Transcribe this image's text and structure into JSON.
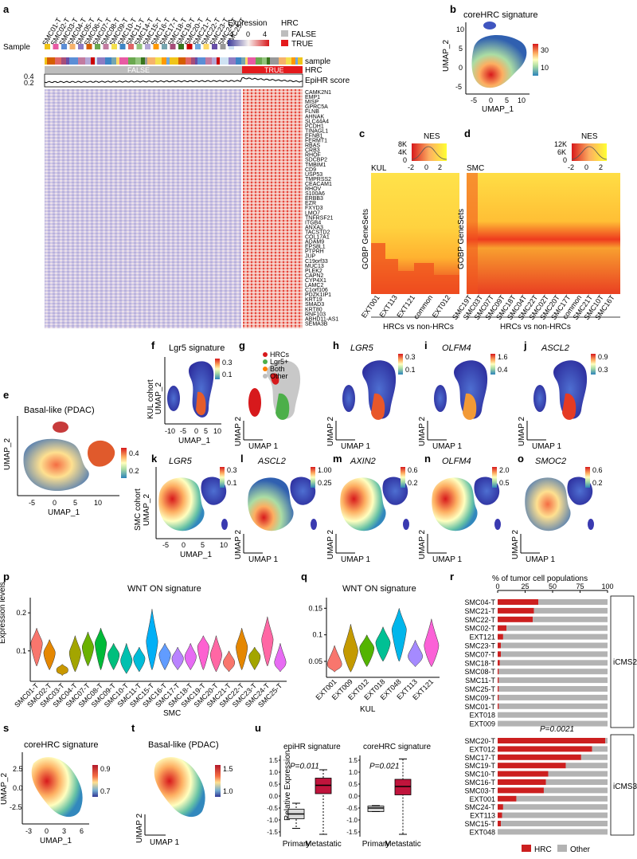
{
  "panels": {
    "a": {
      "letter": "a",
      "sample_label": "Sample",
      "sample_names": [
        "SMC01-T",
        "SMC02-T",
        "SMC03-T",
        "SMC04-T",
        "SMC05-T",
        "SMC06-T",
        "SMC07-T",
        "SMC08-T",
        "SMC09-T",
        "SMC10-T",
        "SMC11-T",
        "SMC14-T",
        "SMC15-T",
        "SMC16-T",
        "SMC17-T",
        "SMC18-T",
        "SMC19-T",
        "SMC20-T",
        "SMC21-T",
        "SMC22-T",
        "SMC23-T",
        "SMC24-T",
        "SMC25-T"
      ],
      "sample_colors": [
        "#f0c419",
        "#e85aa3",
        "#5b8ed6",
        "#f6b26b",
        "#8e7cc3",
        "#d55e00",
        "#6aa84f",
        "#c27ba0",
        "#f4e04d",
        "#3d85c6",
        "#e06666",
        "#93c47d",
        "#b4a7d6",
        "#ff9900",
        "#76a5af",
        "#a64d79",
        "#38761d",
        "#cc0000",
        "#6fa8dc",
        "#ffd966",
        "#674ea7",
        "#999999",
        "#cfe2f3"
      ],
      "expression_label": "Expression",
      "expression_ticks": [
        "-4",
        "0",
        "4"
      ],
      "hrc_legend_title": "HRC",
      "hrc_false": "FALSE",
      "hrc_true": "TRUE",
      "track_sample": "sample",
      "track_hrc": "HRC",
      "track_epihr": "EpiHR score",
      "y_ticks": [
        "0.4",
        "0.2"
      ],
      "genes": [
        "CAMK2N1",
        "EMP1",
        "MISP",
        "GPRC5A",
        "FLNB",
        "AHNAK",
        "SLC44A4",
        "PCDH1",
        "TINAGL1",
        "EFNB1",
        "FERMT1",
        "RBAS",
        "CRB3",
        "RHOF",
        "SDCBP2",
        "TMBIM1",
        "CD9",
        "USP53",
        "TMPRSS2",
        "CEACAM1",
        "RHOV",
        "S100A6",
        "ERBB3",
        "EZR",
        "FXYD3",
        "LMO7",
        "TNFRSF21",
        "ITGB4",
        "ANXA3",
        "TACSTD2",
        "COL17A1",
        "ADAM9",
        "EPS8L1",
        "PTPRH",
        "JUP",
        "C19orf33",
        "MUC13",
        "PLEK2",
        "CAPN2",
        "CYP4X1",
        "LAMC2",
        "C1orf106",
        "PDZK1IP1",
        "KRT19",
        "SMAD3",
        "KRT80",
        "RNF103",
        "ABHD11-AS1",
        "SEMA3B"
      ]
    },
    "b": {
      "letter": "b",
      "title": "coreHRC signature",
      "xlabel": "UMAP_1",
      "ylabel": "UMAP_2",
      "xticks": [
        "-5",
        "0",
        "5",
        "10"
      ],
      "yticks": [
        "10",
        "5",
        "0",
        "-5"
      ],
      "cbar": [
        "30",
        "10"
      ]
    },
    "c": {
      "letter": "c",
      "nes_label": "NES",
      "density_ticks": [
        "8K",
        "4K",
        "0"
      ],
      "nes_ticks": [
        "-2",
        "0",
        "2"
      ],
      "cohort": "KUL",
      "ylabel": "GOBP GeneSets",
      "columns": [
        "EXT001",
        "EXT113",
        "EXT121",
        "common",
        "EXT012"
      ],
      "xlabel": "HRCs vs non-HRCs"
    },
    "d": {
      "letter": "d",
      "nes_label": "NES",
      "density_ticks": [
        "12K",
        "6K",
        "0"
      ],
      "nes_ticks": [
        "-2",
        "0",
        "2"
      ],
      "cohort": "SMC",
      "ylabel": "GOBP GeneSets",
      "columns": [
        "SMC19T",
        "SMC03T",
        "SMC07T",
        "SMC09T",
        "SMC18T",
        "SMC04T",
        "SMC22T",
        "SMC02T",
        "SMC20T",
        "SMC17T",
        "common",
        "SMC21T",
        "SMC10T",
        "SMC16T"
      ],
      "xlabel": "HRCs vs non-HRCs"
    },
    "e": {
      "letter": "e",
      "title": "Basal-like (PDAC)",
      "xlabel": "UMAP_1",
      "ylabel": "UMAP_2",
      "xticks": [
        "-5",
        "0",
        "5",
        "10"
      ],
      "cbar": [
        "0.4",
        "0.2"
      ]
    },
    "f": {
      "letter": "f",
      "title": "Lgr5 signature",
      "xlabel": "UMAP_1",
      "ylabel": "KUL cohort\nUMAP_2",
      "xticks": [
        "-10",
        "-5",
        "0",
        "5",
        "10"
      ],
      "cbar": [
        "0.3",
        "0.1"
      ]
    },
    "g": {
      "letter": "g",
      "legend": [
        "HRCs",
        "Lgr5+",
        "Both",
        "Other"
      ],
      "legend_colors": [
        "#d7191c",
        "#4daf4a",
        "#ff7f00",
        "#bdbdbd"
      ],
      "xlabel": "UMAP 1",
      "ylabel": "UMAP 2"
    },
    "h": {
      "letter": "h",
      "title": "LGR5",
      "cbar": [
        "0.3",
        "0.1"
      ],
      "xlabel": "UMAP 1",
      "ylabel": "UMAP 2"
    },
    "i": {
      "letter": "i",
      "title": "OLFM4",
      "cbar": [
        "1.6",
        "0.4"
      ],
      "xlabel": "UMAP 1",
      "ylabel": "UMAP 2"
    },
    "j": {
      "letter": "j",
      "title": "ASCL2",
      "cbar": [
        "0.9",
        "0.3"
      ],
      "xlabel": "UMAP 1",
      "ylabel": "UMAP 2"
    },
    "k": {
      "letter": "k",
      "title": "LGR5",
      "cbar": [
        "0.3",
        "0.1"
      ],
      "xlabel": "UMAP_1",
      "ylabel": "SMC cohort\nUMAP_2",
      "xticks": [
        "-5",
        "0",
        "5",
        "10"
      ]
    },
    "l": {
      "letter": "l",
      "title": "ASCL2",
      "cbar": [
        "1.00",
        "0.25"
      ],
      "xlabel": "UMAP 1",
      "ylabel": "UMAP 2"
    },
    "m": {
      "letter": "m",
      "title": "AXIN2",
      "cbar": [
        "0.6",
        "0.2"
      ],
      "xlabel": "UMAP 1",
      "ylabel": "UMAP 2"
    },
    "n": {
      "letter": "n",
      "title": "OLFM4",
      "cbar": [
        "2.0",
        "0.5"
      ],
      "xlabel": "UMAP 1",
      "ylabel": "UMAP 2"
    },
    "o": {
      "letter": "o",
      "title": "SMOC2",
      "cbar": [
        "0.6",
        "0.2"
      ],
      "xlabel": "UMAP 1",
      "ylabel": "UMAP 2"
    },
    "r": {
      "letter": "r",
      "title": "% of tumor cell populations",
      "xticks": [
        "0",
        "25",
        "50",
        "75",
        "100"
      ],
      "group1": "iCMS2",
      "group2": "iCMS3",
      "pvalue": "P=0.0021",
      "legend": [
        "HRC",
        "Other"
      ],
      "legend_colors": [
        "#cc1f1f",
        "#b3b3b3"
      ]
    },
    "s": {
      "letter": "s",
      "title": "coreHRC signature",
      "xlabel": "UMAP_1",
      "ylabel": "UMAP_2",
      "xticks": [
        "-3",
        "0",
        "3",
        "6"
      ],
      "yticks": [
        "2.5",
        "0.0",
        "-2.5"
      ],
      "cbar": [
        "0.9",
        "0.7"
      ]
    },
    "t": {
      "letter": "t",
      "title": "Basal-like (PDAC)",
      "cbar": [
        "1.5",
        "1.0"
      ],
      "xlabel": "UMAP 1",
      "ylabel": "UMAP 2"
    },
    "u": {
      "letter": "u",
      "ylabel": "Relative Expression",
      "left_title": "epiHR signature",
      "right_title": "coreHRC signature",
      "left_p": "P=0.011",
      "right_p": "P=0.021",
      "categories": [
        "Primary",
        "Metastatic"
      ],
      "yticks": [
        "1.5",
        "1.0",
        "0.5",
        "0.0",
        "-0.5",
        "-1.0",
        "-1.5"
      ]
    }
  },
  "chart_data": [
    {
      "type": "violin",
      "panel": "p",
      "title": "WNT ON signature",
      "xlabel": "SMC",
      "ylabel": "Expression levels",
      "ylim": [
        0.02,
        0.24
      ],
      "yticks": [
        0.1,
        0.2
      ],
      "categories": [
        "SMC01-T",
        "SMC02-T",
        "SMC03-T",
        "SMC04-T",
        "SMC07-T",
        "SMC08-T",
        "SMC09-T",
        "SMC10-T",
        "SMC11-T",
        "SMC15-T",
        "SMC16-T",
        "SMC17-T",
        "SMC18-T",
        "SMC19-T",
        "SMC20-T",
        "SMC21-T",
        "SMC22-T",
        "SMC23-T",
        "SMC24-T",
        "SMC25-T"
      ],
      "medians": [
        0.12,
        0.095,
        0.05,
        0.095,
        0.11,
        0.12,
        0.09,
        0.075,
        0.08,
        0.125,
        0.09,
        0.08,
        0.085,
        0.11,
        0.09,
        0.07,
        0.11,
        0.085,
        0.13,
        0.07
      ],
      "maxes": [
        0.16,
        0.13,
        0.065,
        0.14,
        0.15,
        0.16,
        0.12,
        0.12,
        0.11,
        0.21,
        0.12,
        0.11,
        0.12,
        0.14,
        0.14,
        0.1,
        0.16,
        0.11,
        0.19,
        0.12
      ],
      "mins": [
        0.06,
        0.05,
        0.035,
        0.045,
        0.06,
        0.05,
        0.05,
        0.04,
        0.045,
        0.05,
        0.05,
        0.05,
        0.05,
        0.05,
        0.045,
        0.045,
        0.05,
        0.05,
        0.06,
        0.045
      ],
      "colors": [
        "#f8766d",
        "#e58700",
        "#c99800",
        "#a3a500",
        "#6bb100",
        "#00ba38",
        "#00bf7d",
        "#00c0af",
        "#00bcd8",
        "#00b0f6",
        "#619cff",
        "#b983ff",
        "#e76bf3",
        "#fd61d1",
        "#ff67a4",
        "#f8766d",
        "#e58700",
        "#a3a500",
        "#ff67a4",
        "#e76bf3"
      ]
    },
    {
      "type": "violin",
      "panel": "q",
      "title": "WNT ON signature",
      "xlabel": "KUL",
      "ylim": [
        0.02,
        0.17
      ],
      "yticks": [
        0.05,
        0.1,
        0.15
      ],
      "categories": [
        "EXT001",
        "EXT009",
        "EXT012",
        "EXT018",
        "EXT048",
        "EXT113",
        "EXT121"
      ],
      "medians": [
        0.045,
        0.07,
        0.075,
        0.085,
        0.11,
        0.06,
        0.08
      ],
      "maxes": [
        0.08,
        0.12,
        0.1,
        0.115,
        0.15,
        0.09,
        0.13
      ],
      "mins": [
        0.03,
        0.03,
        0.04,
        0.05,
        0.05,
        0.04,
        0.04
      ],
      "colors": [
        "#f8766d",
        "#c49a00",
        "#53b400",
        "#00c094",
        "#00b6eb",
        "#a58aff",
        "#fb61d7"
      ]
    },
    {
      "type": "bar",
      "panel": "r",
      "stacked": true,
      "title": "% of tumor cell populations",
      "categories": [
        "SMC04-T",
        "SMC21-T",
        "SMC22-T",
        "SMC02-T",
        "EXT121",
        "SMC23-T",
        "SMC07-T",
        "SMC18-T",
        "SMC08-T",
        "SMC11-T",
        "SMC25-T",
        "SMC09-T",
        "SMC01-T",
        "EXT018",
        "EXT009",
        "SMC20-T",
        "EXT012",
        "SMC17-T",
        "SMC19-T",
        "SMC10-T",
        "SMC16-T",
        "SMC03-T",
        "EXT001",
        "SMC24-T",
        "EXT113",
        "SMC15-T",
        "EXT048"
      ],
      "series": [
        {
          "name": "HRC",
          "values": [
            37,
            33,
            32,
            8,
            5,
            3,
            3,
            2,
            1,
            1,
            1,
            1,
            1,
            0,
            0,
            98,
            86,
            76,
            62,
            46,
            44,
            42,
            17,
            5,
            4,
            3,
            0
          ]
        },
        {
          "name": "Other",
          "values": [
            63,
            67,
            68,
            92,
            95,
            97,
            97,
            98,
            99,
            99,
            99,
            99,
            99,
            100,
            100,
            2,
            14,
            24,
            38,
            54,
            56,
            58,
            83,
            95,
            96,
            97,
            100
          ]
        }
      ],
      "xlim": [
        0,
        100
      ]
    }
  ]
}
